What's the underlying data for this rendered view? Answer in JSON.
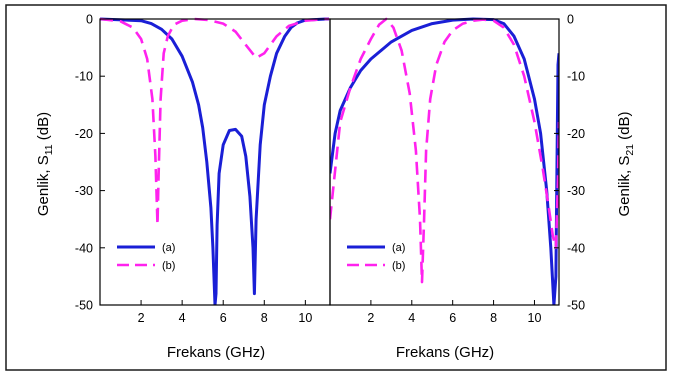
{
  "colors": {
    "series_a": "#1a1fd6",
    "series_b": "#ff22ee",
    "axes": "#000000"
  },
  "chart_data": [
    {
      "type": "line",
      "panel": "left",
      "xlabel": "Frekans (GHz)",
      "ylabel": {
        "base": "Genlik, S",
        "sub": "11",
        "unit": " (dB)"
      },
      "xlim": [
        0,
        11.2
      ],
      "ylim": [
        -50,
        0
      ],
      "xticks": [
        2,
        4,
        6,
        8,
        10
      ],
      "yticks": [
        0,
        -10,
        -20,
        -30,
        -40,
        -50
      ],
      "ytick_side": "left",
      "legend": "bottom-left",
      "series": [
        {
          "name": "(a)",
          "style": "solid",
          "color": "#1a1fd6",
          "x": [
            0.0,
            2.0,
            2.5,
            3.0,
            3.5,
            4.0,
            4.5,
            4.8,
            5.0,
            5.2,
            5.4,
            5.5,
            5.6,
            5.65,
            5.7,
            5.8,
            6.0,
            6.3,
            6.6,
            6.9,
            7.1,
            7.3,
            7.45,
            7.52,
            7.6,
            7.8,
            8.0,
            8.3,
            8.6,
            9.0,
            9.3,
            9.6,
            10.0,
            11.0,
            11.15
          ],
          "y": [
            0.0,
            -0.3,
            -0.8,
            -1.8,
            -3.5,
            -6.5,
            -11.0,
            -15.0,
            -19.0,
            -25.0,
            -33.0,
            -40.0,
            -50.0,
            -48.0,
            -36.0,
            -27.0,
            -22.0,
            -19.5,
            -19.3,
            -20.5,
            -24.0,
            -31.0,
            -40.0,
            -48.0,
            -35.0,
            -22.0,
            -15.0,
            -10.0,
            -6.0,
            -3.0,
            -1.5,
            -0.7,
            -0.2,
            0.0,
            0.0
          ]
        },
        {
          "name": "(b)",
          "style": "dashed",
          "color": "#ff22ee",
          "x": [
            0.0,
            1.0,
            1.6,
            2.0,
            2.3,
            2.55,
            2.7,
            2.8,
            2.85,
            2.95,
            3.1,
            3.3,
            3.6,
            4.0,
            4.6,
            5.3,
            6.0,
            6.6,
            7.2,
            7.6,
            8.0,
            8.6,
            9.2,
            10.0,
            11.0,
            11.15
          ],
          "y": [
            0.0,
            -0.4,
            -1.5,
            -3.5,
            -7.0,
            -14.0,
            -24.0,
            -36.0,
            -28.0,
            -14.0,
            -6.0,
            -3.0,
            -1.0,
            -0.3,
            0.0,
            -0.2,
            -0.8,
            -2.2,
            -5.0,
            -6.8,
            -6.0,
            -3.0,
            -1.2,
            -0.3,
            0.0,
            0.0
          ]
        }
      ]
    },
    {
      "type": "line",
      "panel": "right",
      "xlabel": "Frekans (GHz)",
      "ylabel": {
        "base": "Genlik, S",
        "sub": "21",
        "unit": " (dB)"
      },
      "xlim": [
        0,
        11.2
      ],
      "ylim": [
        -50,
        0
      ],
      "xticks": [
        2,
        4,
        6,
        8,
        10
      ],
      "yticks": [
        0,
        -10,
        -20,
        -30,
        -40,
        -50
      ],
      "ytick_side": "right",
      "legend": "bottom-left",
      "series": [
        {
          "name": "(a)",
          "style": "solid",
          "color": "#1a1fd6",
          "x": [
            0.0,
            0.25,
            0.5,
            1.0,
            1.5,
            2.0,
            3.0,
            4.0,
            5.0,
            6.0,
            7.0,
            8.0,
            8.5,
            9.0,
            9.5,
            10.0,
            10.3,
            10.6,
            10.8,
            10.95,
            11.05,
            11.1,
            11.15,
            11.2
          ],
          "y": [
            -27.0,
            -20.0,
            -16.0,
            -12.0,
            -9.0,
            -7.0,
            -4.0,
            -2.0,
            -0.8,
            -0.2,
            0.0,
            -0.1,
            -0.8,
            -3.0,
            -7.0,
            -14.0,
            -20.0,
            -30.0,
            -40.0,
            -50.0,
            -45.0,
            -25.0,
            -8.0,
            -6.0
          ]
        },
        {
          "name": "(b)",
          "style": "dashed",
          "color": "#ff22ee",
          "x": [
            0.0,
            0.5,
            1.0,
            1.5,
            2.0,
            2.4,
            2.75,
            3.1,
            3.5,
            3.9,
            4.2,
            4.4,
            4.5,
            4.6,
            4.7,
            4.9,
            5.2,
            5.6,
            6.0,
            6.5,
            7.0,
            7.5,
            8.0,
            8.5,
            9.0,
            9.5,
            10.0,
            10.4,
            10.7,
            10.9,
            11.05,
            11.15,
            11.2
          ],
          "y": [
            -35.0,
            -18.0,
            -12.0,
            -7.0,
            -3.5,
            -1.0,
            0.0,
            -1.5,
            -5.5,
            -13.0,
            -23.0,
            -35.0,
            -46.0,
            -35.0,
            -23.0,
            -14.0,
            -8.0,
            -4.0,
            -2.0,
            -0.8,
            -0.3,
            -0.1,
            -0.3,
            -1.5,
            -4.5,
            -10.0,
            -18.0,
            -26.0,
            -33.0,
            -38.0,
            -40.0,
            -28.0,
            -18.0
          ]
        }
      ]
    }
  ]
}
